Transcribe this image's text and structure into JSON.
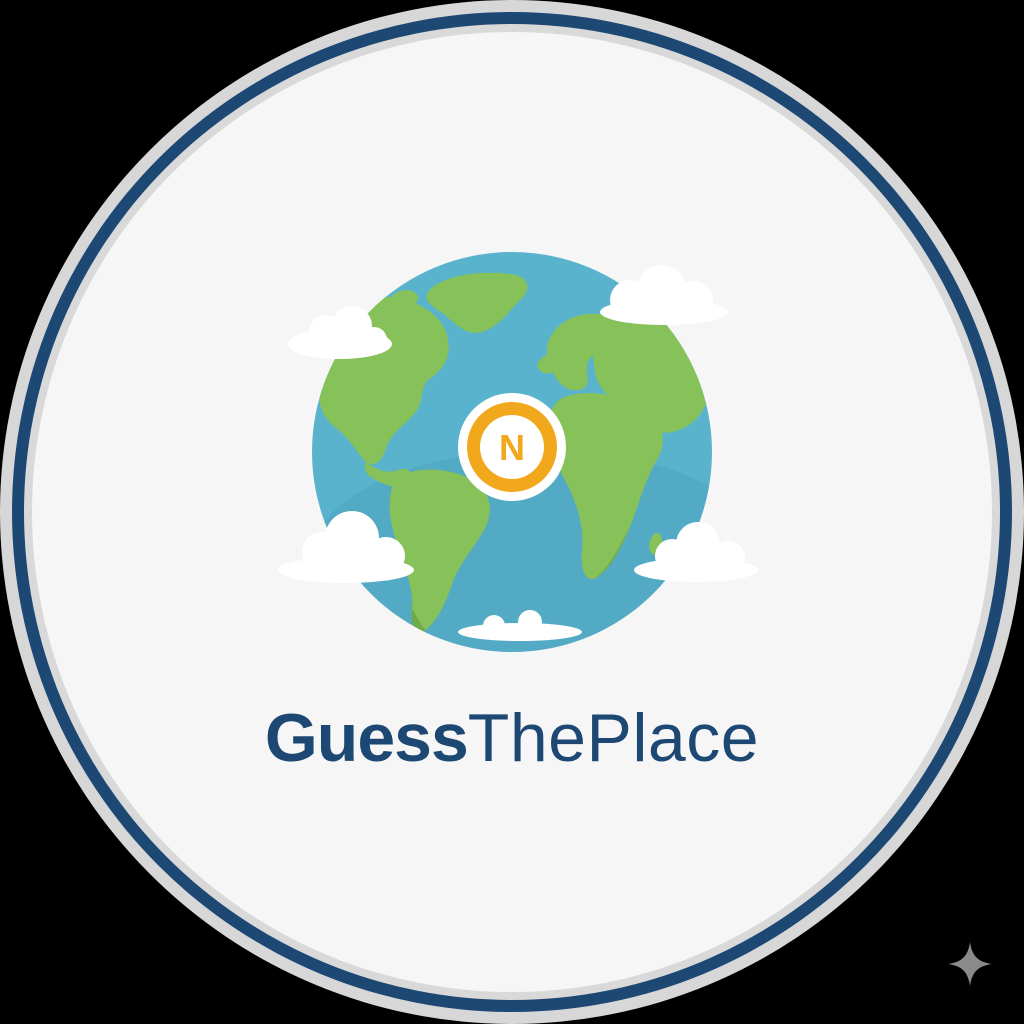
{
  "logo": {
    "compass_letter": "N",
    "wordmark_bold": "Guess",
    "wordmark_light": "ThePlace"
  },
  "colors": {
    "background": "#000000",
    "badge_fill": "#f6f6f6",
    "outer_ring": "#d7d7d7",
    "navy_ring": "#1d4873",
    "ocean": "#5ab3cd",
    "ocean_shadow": "#4ea2bd",
    "land": "#86c15a",
    "land_shadow": "#6eab4a",
    "compass_fill": "#f2a81d",
    "compass_inner": "#ffffff",
    "cloud": "#ffffff",
    "wordmark": "#1d4873",
    "sparkle": "#8a8a8a"
  },
  "icons": {
    "globe": "globe-icon",
    "compass": "compass-icon",
    "sparkle": "sparkle-icon"
  }
}
